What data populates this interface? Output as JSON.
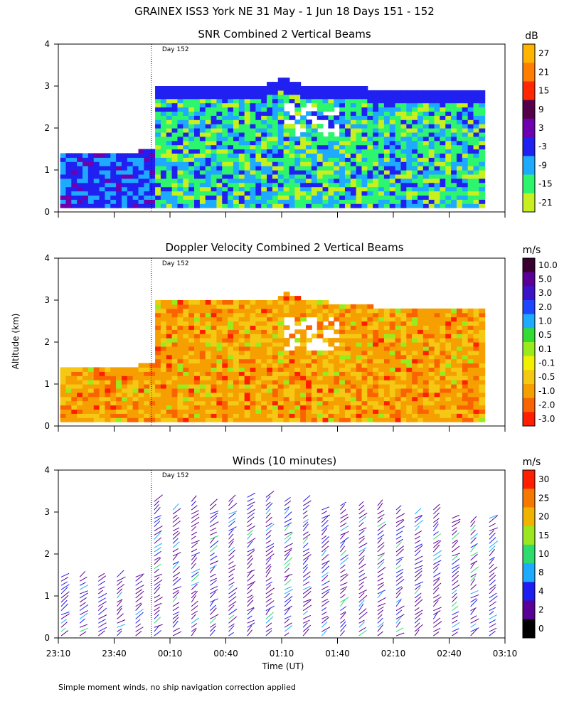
{
  "title": "GRAINEX ISS3 York NE   31 May -   1 Jun 18 Days 151 - 152",
  "footnote": "Simple moment winds, no ship navigation correction applied",
  "shared_axes": {
    "xlabel": "Time (UT)",
    "ylabel": "Altitude (km)",
    "x_ticks": [
      "23:10",
      "23:40",
      "00:10",
      "00:40",
      "01:10",
      "01:40",
      "02:10",
      "02:40",
      "03:10"
    ],
    "y_ticks": [
      "0",
      "1",
      "2",
      "3",
      "4"
    ],
    "day_marker": "Day 152"
  },
  "chart_data": [
    {
      "type": "heatmap",
      "title": "SNR Combined 2 Vertical Beams",
      "xlabel": "",
      "ylabel": "Altitude (km)",
      "x_range": [
        "23:10",
        "03:10"
      ],
      "ylim": [
        0,
        4
      ],
      "day_boundary": "00:00",
      "colorbar_unit": "dB",
      "colorbar_ticks": [
        "27",
        "21",
        "15",
        "9",
        "3",
        "-3",
        "-9",
        "-15",
        "-21"
      ],
      "colorbar_colors": [
        "#ffb400",
        "#ff7d00",
        "#ff2800",
        "#55004a",
        "#6e00b0",
        "#2020f0",
        "#1eaaff",
        "#2df56e",
        "#c8f01e"
      ],
      "coverage_top_km": [
        {
          "time": "23:10",
          "top": 1.4
        },
        {
          "time": "23:52",
          "top": 1.4
        },
        {
          "time": "00:00",
          "top": 1.5
        },
        {
          "time": "00:00",
          "top": 2.95
        },
        {
          "time": "00:40",
          "top": 2.95
        },
        {
          "time": "01:00",
          "top": 3.0
        },
        {
          "time": "01:10",
          "top": 3.15
        },
        {
          "time": "01:20",
          "top": 3.0
        },
        {
          "time": "02:10",
          "top": 2.85
        },
        {
          "time": "03:00",
          "top": 2.8
        }
      ]
    },
    {
      "type": "heatmap",
      "title": "Doppler Velocity Combined 2 Vertical Beams",
      "xlabel": "",
      "ylabel": "Altitude (km)",
      "x_range": [
        "23:10",
        "03:10"
      ],
      "ylim": [
        0,
        4
      ],
      "day_boundary": "00:00",
      "colorbar_unit": "m/s",
      "colorbar_ticks": [
        "10.0",
        "5.0",
        "3.0",
        "2.0",
        "1.0",
        "0.5",
        "0.1",
        "-0.1",
        "-0.5",
        "-1.0",
        "-2.0",
        "-3.0"
      ],
      "colorbar_colors": [
        "#3a0030",
        "#5a0096",
        "#3c14c8",
        "#1e46ff",
        "#1eaaff",
        "#32dc32",
        "#9aeb1e",
        "#f0f000",
        "#f5c814",
        "#f5a000",
        "#fa6400",
        "#ff1e00"
      ],
      "coverage_top_km": [
        {
          "time": "23:10",
          "top": 1.4
        },
        {
          "time": "23:52",
          "top": 1.4
        },
        {
          "time": "00:00",
          "top": 1.5
        },
        {
          "time": "00:00",
          "top": 2.95
        },
        {
          "time": "00:40",
          "top": 2.95
        },
        {
          "time": "01:05",
          "top": 3.0
        },
        {
          "time": "01:10",
          "top": 3.15
        },
        {
          "time": "01:20",
          "top": 2.95
        },
        {
          "time": "02:10",
          "top": 2.75
        },
        {
          "time": "03:00",
          "top": 2.7
        }
      ]
    },
    {
      "type": "scatter",
      "title": "Winds (10 minutes)",
      "xlabel": "Time (UT)",
      "ylabel": "Altitude (km)",
      "x_range": [
        "23:10",
        "03:10"
      ],
      "ylim": [
        0,
        4
      ],
      "day_boundary": "00:00",
      "colorbar_unit": "m/s",
      "colorbar_ticks": [
        "30",
        "25",
        "20",
        "15",
        "10",
        "8",
        "4",
        "2",
        "0"
      ],
      "colorbar_colors": [
        "#ff1e00",
        "#f57800",
        "#f0b400",
        "#9be61e",
        "#2ddc6e",
        "#1eaaff",
        "#1e1ef0",
        "#5a0096",
        "#000000"
      ],
      "profile_times": [
        "23:10",
        "23:20",
        "23:30",
        "23:40",
        "23:50",
        "00:00",
        "00:10",
        "00:20",
        "00:30",
        "00:40",
        "00:50",
        "01:00",
        "01:10",
        "01:20",
        "01:30",
        "01:40",
        "01:50",
        "02:00",
        "02:10",
        "02:20",
        "02:30",
        "02:40",
        "02:50",
        "03:00"
      ],
      "profile_tops_km": [
        1.5,
        1.5,
        1.5,
        1.5,
        1.5,
        3.3,
        3.1,
        3.3,
        3.2,
        3.3,
        3.4,
        3.4,
        3.3,
        3.3,
        3.1,
        3.2,
        3.2,
        3.2,
        3.1,
        3.0,
        3.1,
        2.9,
        2.8,
        2.9
      ]
    }
  ]
}
